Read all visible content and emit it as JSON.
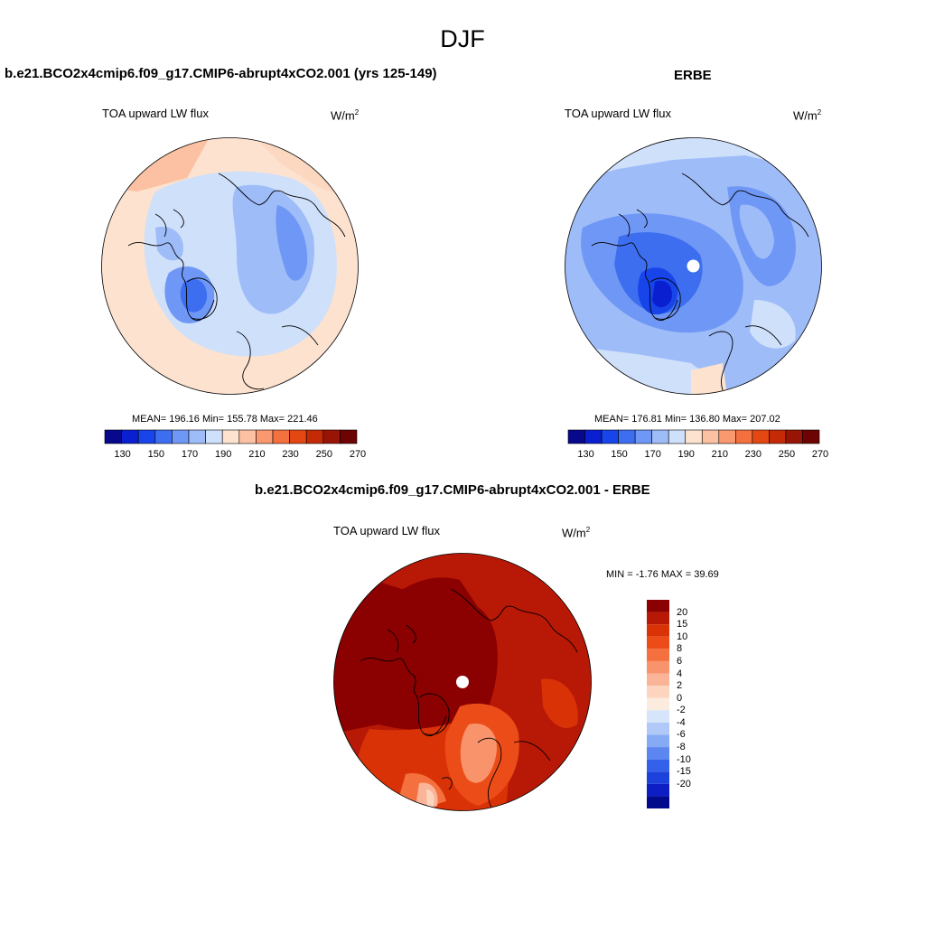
{
  "figure": {
    "season": "DJF",
    "variable": "TOA upward LW flux",
    "units": "W/m",
    "units_sup": "2"
  },
  "panels": {
    "model": {
      "title": "b.e21.BCO2x4cmip6.f09_g17.CMIP6-abrupt4xCO2.001 (yrs 125-149)",
      "stats": "MEAN= 196.16  Min= 155.78  Max= 221.46"
    },
    "obs": {
      "title": "ERBE",
      "stats": "MEAN= 176.81  Min= 136.80  Max= 207.02"
    },
    "diff": {
      "title": "b.e21.BCO2x4cmip6.f09_g17.CMIP6-abrupt4xCO2.001 - ERBE",
      "stats": "MIN =  -1.76 MAX =  39.69"
    }
  },
  "colorbars": {
    "abs": {
      "colors": [
        "#08088c",
        "#0a1fcf",
        "#1845ea",
        "#3d6ef0",
        "#6f97f5",
        "#9ebcf8",
        "#cfe0fb",
        "#fde2cf",
        "#fcc0a2",
        "#fa9870",
        "#f4703f",
        "#e44812",
        "#c42a06",
        "#981405",
        "#6e0303"
      ],
      "tick_labels": [
        "130",
        "150",
        "170",
        "190",
        "210",
        "230",
        "250",
        "270"
      ]
    },
    "diff": {
      "colors": [
        "#8b0000",
        "#b81806",
        "#d93206",
        "#ec4c17",
        "#f4703f",
        "#f8936b",
        "#fab497",
        "#fdd5bf",
        "#fcebdf",
        "#d6e5fb",
        "#b0c9f8",
        "#87aaf5",
        "#5d87f0",
        "#3461ea",
        "#1b42dd",
        "#0c1ec4",
        "#020a8c"
      ],
      "tick_labels": [
        "20",
        "15",
        "10",
        "8",
        "6",
        "4",
        "2",
        "0",
        "-2",
        "-4",
        "-6",
        "-8",
        "-10",
        "-15",
        "-20"
      ]
    }
  }
}
